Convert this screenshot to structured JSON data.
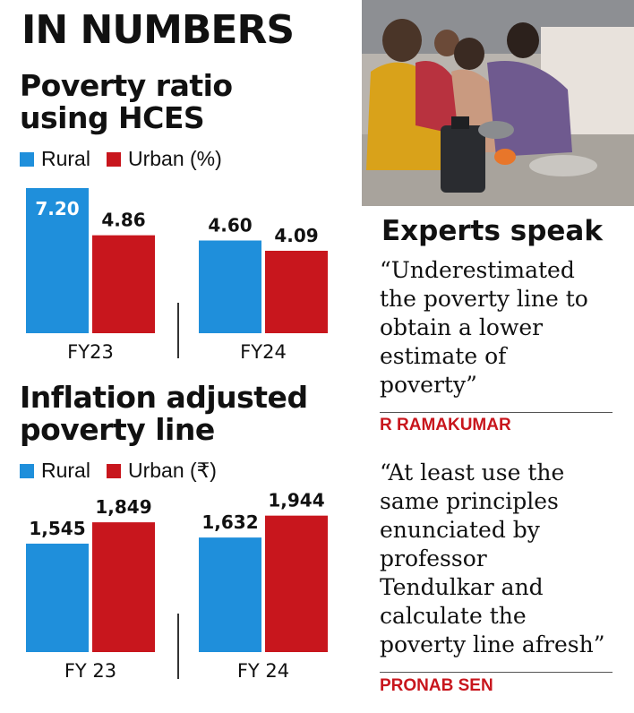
{
  "header": {
    "title": "IN NUMBERS"
  },
  "colors": {
    "rural": "#1f8fdb",
    "urban": "#c8161d",
    "attribution": "#c8161d"
  },
  "chart_data": [
    {
      "type": "bar",
      "title": "Poverty ratio using HCES",
      "title_lines": [
        "Poverty ratio",
        "using HCES"
      ],
      "legend": {
        "rural": "Rural",
        "urban": "Urban (%)"
      },
      "categories": [
        "FY23",
        "FY24"
      ],
      "category_labels": [
        "FY23",
        "FY24"
      ],
      "series": [
        {
          "name": "Rural",
          "values": [
            7.2,
            4.6
          ],
          "labels": [
            "7.20",
            "4.60"
          ]
        },
        {
          "name": "Urban",
          "values": [
            4.86,
            4.09
          ],
          "labels": [
            "4.86",
            "4.09"
          ]
        }
      ],
      "ylim": [
        0,
        7.2
      ]
    },
    {
      "type": "bar",
      "title": "Inflation adjusted poverty line",
      "title_lines": [
        "Inflation adjusted",
        "poverty line"
      ],
      "legend": {
        "rural": "Rural",
        "urban": "Urban (₹)"
      },
      "categories": [
        "FY23",
        "FY24"
      ],
      "category_labels": [
        "FY 23",
        "FY 24"
      ],
      "series": [
        {
          "name": "Rural",
          "values": [
            1545,
            1632
          ],
          "labels": [
            "1,545",
            "1,632"
          ]
        },
        {
          "name": "Urban",
          "values": [
            1849,
            1944
          ],
          "labels": [
            "1,849",
            "1,944"
          ]
        }
      ],
      "ylim": [
        0,
        2450
      ]
    }
  ],
  "experts": {
    "title": "Experts speak",
    "quotes": [
      {
        "text_lines": [
          "“Underestimated",
          "the poverty line to",
          "obtain a lower",
          "estimate of",
          "poverty”"
        ],
        "author": "R RAMAKUMAR"
      },
      {
        "text_lines": [
          "“At least use the",
          "same principles",
          "enunciated by",
          "professor",
          "Tendulkar and",
          "calculate the",
          "poverty line afresh”"
        ],
        "author": "PRONAB SEN"
      }
    ]
  }
}
